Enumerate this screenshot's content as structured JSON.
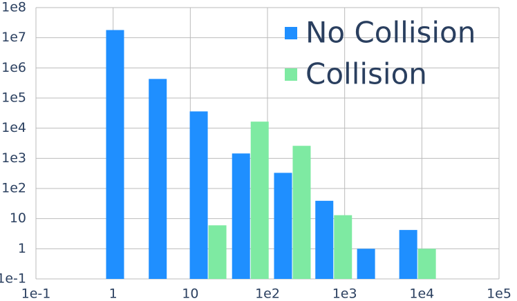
{
  "chart_data": {
    "type": "bar",
    "x": [
      1.4,
      5,
      17,
      60,
      210,
      720,
      2500,
      8800
    ],
    "series": [
      {
        "name": "No Collision",
        "color": "#1f8fff",
        "values": [
          18000000,
          430000,
          36000,
          1450,
          330,
          39,
          1,
          4.2
        ]
      },
      {
        "name": "Collision",
        "color": "#7eeaa2",
        "values": [
          null,
          null,
          6,
          16500,
          2600,
          13,
          null,
          1
        ]
      }
    ],
    "xlog": true,
    "ylog": true,
    "xlim": [
      0.1,
      100000
    ],
    "xticks": [
      {
        "value": 0.1,
        "label": "1e-1"
      },
      1,
      10,
      {
        "value": 100,
        "label": "1e2"
      },
      {
        "value": 1000,
        "label": "1e3"
      },
      {
        "value": 10000,
        "label": "1e4"
      },
      {
        "value": 100000,
        "label": "1e5"
      }
    ],
    "ylim": [
      0.1,
      100000000
    ],
    "yticks": [
      {
        "value": 0.1,
        "label": "1e-1"
      },
      1,
      10,
      {
        "value": 100,
        "label": "1e2"
      },
      {
        "value": 1000,
        "label": "1e3"
      },
      {
        "value": 10000,
        "label": "1e4"
      },
      {
        "value": 100000,
        "label": "1e5"
      },
      {
        "value": 1000000,
        "label": "1e6"
      },
      {
        "value": 10000000,
        "label": "1e7"
      },
      {
        "value": 100000000,
        "label": "1e8"
      }
    ],
    "grid": true,
    "legend": "top-right"
  }
}
